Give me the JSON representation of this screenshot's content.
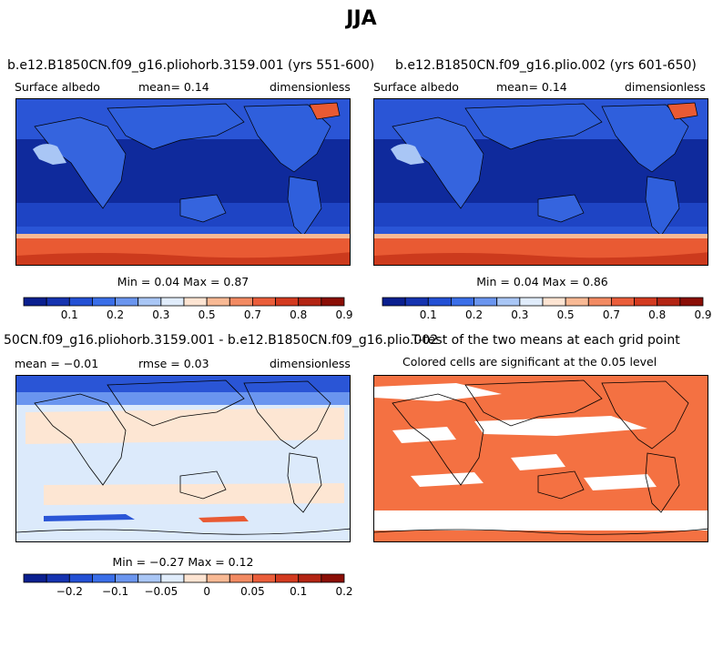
{
  "figure_title": "JJA",
  "panels": [
    {
      "title": "b.e12.B1850CN.f09_g16.pliohorb.3159.001 (yrs 551-600)",
      "left_label": "Surface albedo",
      "mid_label": "mean=   0.14",
      "right_label": "dimensionless",
      "stats": "Min =   0.04 Max =   0.87",
      "colorbar_ticks": [
        "0.1",
        "0.2",
        "0.3",
        "0.5",
        "0.7",
        "0.8",
        "0.9"
      ]
    },
    {
      "title": "b.e12.B1850CN.f09_g16.plio.002 (yrs 601-650)",
      "left_label": "Surface albedo",
      "mid_label": "mean=   0.14",
      "right_label": "dimensionless",
      "stats": "Min =   0.04 Max =   0.86",
      "colorbar_ticks": [
        "0.1",
        "0.2",
        "0.3",
        "0.5",
        "0.7",
        "0.8",
        "0.9"
      ]
    },
    {
      "title": "50CN.f09_g16.pliohorb.3159.001 - b.e12.B1850CN.f09_g16.plio.002",
      "left_label": "mean =  −0.01",
      "mid_label": "rmse =   0.03",
      "right_label": "dimensionless",
      "stats": "Min =  −0.27 Max =   0.12",
      "colorbar_ticks": [
        "−0.2",
        "−0.1",
        "−0.05",
        "0",
        "0.05",
        "0.1",
        "0.2"
      ]
    },
    {
      "title": "T-test of the two means at each grid point",
      "subtitle": "Colored cells are significant at the 0.05 level"
    }
  ],
  "chart_data": [
    {
      "type": "heatmap",
      "title": "b.e12.B1850CN.f09_g16.pliohorb.3159.001 (yrs 551-600)",
      "variable": "Surface albedo",
      "units": "dimensionless",
      "mean": 0.14,
      "min": 0.04,
      "max": 0.87,
      "colorbar_levels": [
        "0.1",
        "0.2",
        "0.3",
        "0.5",
        "0.7",
        "0.8",
        "0.9"
      ],
      "colormap": [
        "#0a1f8f",
        "#1533b0",
        "#2350d4",
        "#3a6ee8",
        "#6a95ef",
        "#a9c6f5",
        "#e0ecfb",
        "#fde4d2",
        "#f8b994",
        "#f28a62",
        "#ea5d3a",
        "#d33a1f",
        "#b32413",
        "#8a0e06"
      ]
    },
    {
      "type": "heatmap",
      "title": "b.e12.B1850CN.f09_g16.plio.002 (yrs 601-650)",
      "variable": "Surface albedo",
      "units": "dimensionless",
      "mean": 0.14,
      "min": 0.04,
      "max": 0.86,
      "colorbar_levels": [
        "0.1",
        "0.2",
        "0.3",
        "0.5",
        "0.7",
        "0.8",
        "0.9"
      ]
    },
    {
      "type": "heatmap",
      "title": "50CN.f09_g16.pliohorb.3159.001 - b.e12.B1850CN.f09_g16.plio.002",
      "units": "dimensionless",
      "mean": -0.01,
      "rmse": 0.03,
      "min": -0.27,
      "max": 0.12,
      "colorbar_levels": [
        "−0.2",
        "−0.1",
        "−0.05",
        "0",
        "0.05",
        "0.1",
        "0.2"
      ]
    },
    {
      "type": "heatmap",
      "title": "T-test of the two means at each grid point",
      "subtitle": "Colored cells are significant at the 0.05 level",
      "significant_color": "#f07040"
    }
  ],
  "colors": {
    "deep_ocean": "#0f2a9c",
    "mid_ocean": "#1e44c4",
    "land_blue": "#2f5fdc",
    "light_land": "#8fb2ef",
    "ice_orange": "#e95a33",
    "ice_red": "#cc3a1d",
    "diff_light_blue": "#dceafb",
    "diff_cream": "#fde6d3",
    "ttest_orange": "#f47142"
  }
}
